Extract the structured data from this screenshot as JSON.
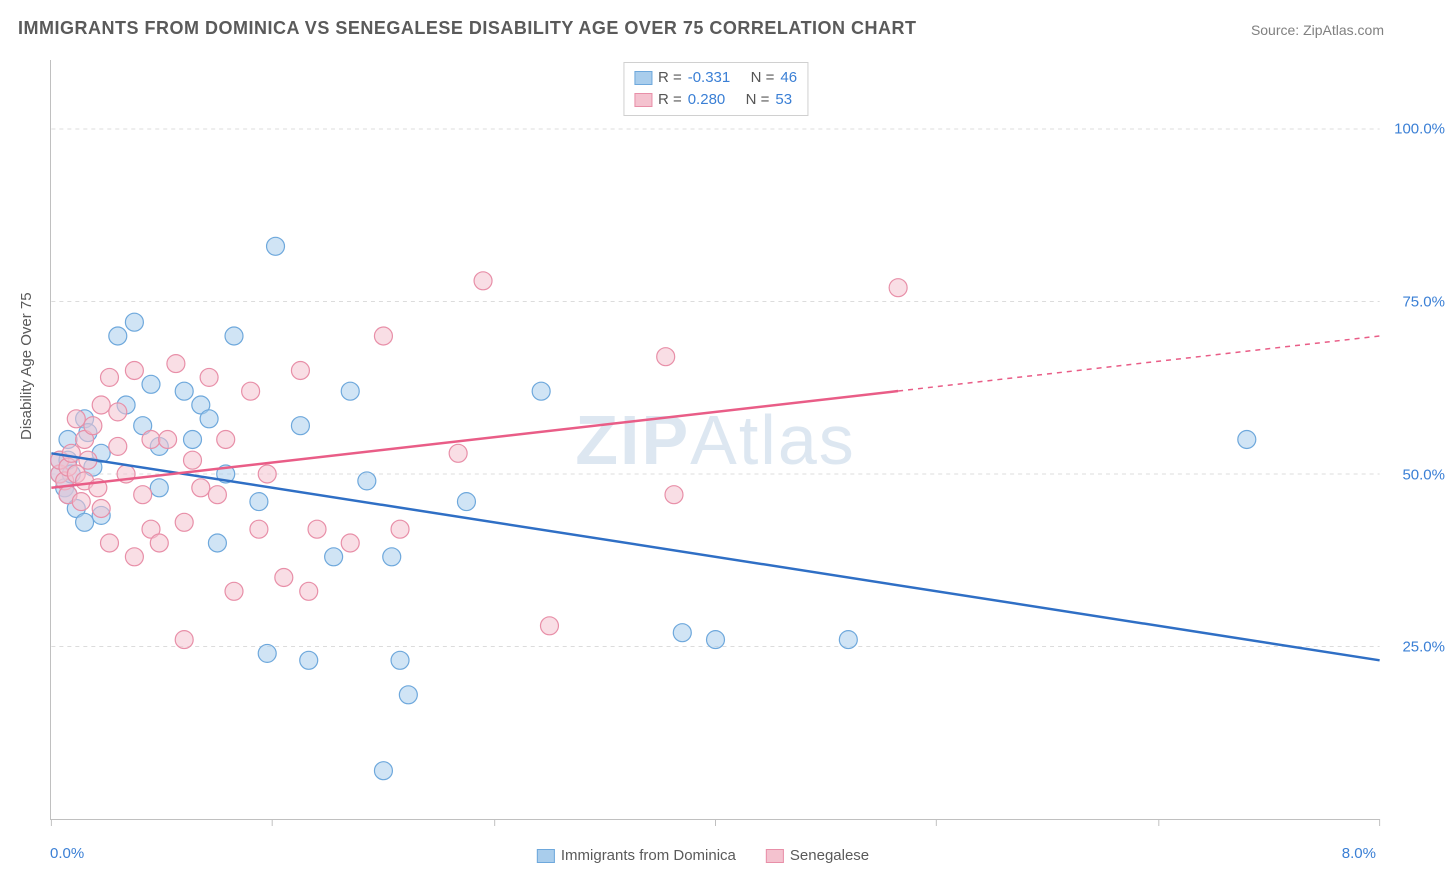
{
  "title": "IMMIGRANTS FROM DOMINICA VS SENEGALESE DISABILITY AGE OVER 75 CORRELATION CHART",
  "source_label": "Source:",
  "source_value": "ZipAtlas.com",
  "watermark_bold": "ZIP",
  "watermark_rest": "Atlas",
  "y_axis_title": "Disability Age Over 75",
  "x_axis_min_label": "0.0%",
  "x_axis_max_label": "8.0%",
  "chart": {
    "type": "scatter",
    "xlim": [
      0,
      8
    ],
    "ylim": [
      0,
      110
    ],
    "y_ticks": [
      25,
      50,
      75,
      100
    ],
    "y_tick_labels": [
      "25.0%",
      "50.0%",
      "75.0%",
      "100.0%"
    ],
    "x_ticks": [
      0,
      1.33,
      2.67,
      4,
      5.33,
      6.67,
      8
    ],
    "background_color": "#ffffff",
    "grid_color": "#dcdcdc",
    "axis_color": "#c0c0c0",
    "marker_radius": 9,
    "marker_opacity": 0.55,
    "series": [
      {
        "name": "Immigrants from Dominica",
        "color_fill": "#a9cdec",
        "color_stroke": "#6ea8dc",
        "r_value": "-0.331",
        "n_value": "46",
        "regression": {
          "x1": 0,
          "y1": 53,
          "x2": 8,
          "y2": 23,
          "solid_until_x": 8
        },
        "points": [
          [
            0.05,
            52
          ],
          [
            0.05,
            50
          ],
          [
            0.08,
            48
          ],
          [
            0.1,
            55
          ],
          [
            0.1,
            47
          ],
          [
            0.1,
            52
          ],
          [
            0.12,
            50
          ],
          [
            0.15,
            45
          ],
          [
            0.2,
            58
          ],
          [
            0.2,
            43
          ],
          [
            0.22,
            56
          ],
          [
            0.25,
            51
          ],
          [
            0.3,
            53
          ],
          [
            0.3,
            44
          ],
          [
            0.4,
            70
          ],
          [
            0.45,
            60
          ],
          [
            0.5,
            72
          ],
          [
            0.55,
            57
          ],
          [
            0.6,
            63
          ],
          [
            0.65,
            48
          ],
          [
            0.65,
            54
          ],
          [
            0.8,
            62
          ],
          [
            0.85,
            55
          ],
          [
            0.9,
            60
          ],
          [
            0.95,
            58
          ],
          [
            1.0,
            40
          ],
          [
            1.05,
            50
          ],
          [
            1.1,
            70
          ],
          [
            1.25,
            46
          ],
          [
            1.3,
            24
          ],
          [
            1.35,
            83
          ],
          [
            1.5,
            57
          ],
          [
            1.55,
            23
          ],
          [
            1.7,
            38
          ],
          [
            1.8,
            62
          ],
          [
            1.9,
            49
          ],
          [
            2.0,
            7
          ],
          [
            2.05,
            38
          ],
          [
            2.1,
            23
          ],
          [
            2.15,
            18
          ],
          [
            2.5,
            46
          ],
          [
            2.95,
            62
          ],
          [
            3.8,
            27
          ],
          [
            4.0,
            26
          ],
          [
            4.8,
            26
          ],
          [
            7.2,
            55
          ]
        ]
      },
      {
        "name": "Senegalese",
        "color_fill": "#f4c2cf",
        "color_stroke": "#e88fa8",
        "r_value": "0.280",
        "n_value": "53",
        "regression": {
          "x1": 0,
          "y1": 48,
          "x2": 8,
          "y2": 70,
          "solid_until_x": 5.1
        },
        "points": [
          [
            0.05,
            50
          ],
          [
            0.05,
            52
          ],
          [
            0.08,
            49
          ],
          [
            0.1,
            51
          ],
          [
            0.1,
            47
          ],
          [
            0.12,
            53
          ],
          [
            0.15,
            50
          ],
          [
            0.15,
            58
          ],
          [
            0.18,
            46
          ],
          [
            0.2,
            55
          ],
          [
            0.2,
            49
          ],
          [
            0.22,
            52
          ],
          [
            0.25,
            57
          ],
          [
            0.28,
            48
          ],
          [
            0.3,
            60
          ],
          [
            0.3,
            45
          ],
          [
            0.35,
            64
          ],
          [
            0.35,
            40
          ],
          [
            0.4,
            54
          ],
          [
            0.4,
            59
          ],
          [
            0.45,
            50
          ],
          [
            0.5,
            65
          ],
          [
            0.5,
            38
          ],
          [
            0.55,
            47
          ],
          [
            0.6,
            42
          ],
          [
            0.6,
            55
          ],
          [
            0.65,
            40
          ],
          [
            0.7,
            55
          ],
          [
            0.75,
            66
          ],
          [
            0.8,
            43
          ],
          [
            0.8,
            26
          ],
          [
            0.85,
            52
          ],
          [
            0.9,
            48
          ],
          [
            0.95,
            64
          ],
          [
            1.0,
            47
          ],
          [
            1.05,
            55
          ],
          [
            1.1,
            33
          ],
          [
            1.2,
            62
          ],
          [
            1.25,
            42
          ],
          [
            1.3,
            50
          ],
          [
            1.4,
            35
          ],
          [
            1.5,
            65
          ],
          [
            1.55,
            33
          ],
          [
            1.6,
            42
          ],
          [
            1.8,
            40
          ],
          [
            2.0,
            70
          ],
          [
            2.1,
            42
          ],
          [
            2.45,
            53
          ],
          [
            2.6,
            78
          ],
          [
            3.0,
            28
          ],
          [
            3.7,
            67
          ],
          [
            3.75,
            47
          ],
          [
            5.1,
            77
          ]
        ]
      }
    ]
  },
  "legend_top": {
    "r_label": "R =",
    "n_label": "N ="
  },
  "colors": {
    "text_gray": "#5a5a5a",
    "tick_blue": "#3a7fd5",
    "blue_line": "#2f6fc5",
    "pink_line": "#e95d87"
  },
  "font": {
    "title_size": 18,
    "label_size": 15,
    "watermark_size": 70
  }
}
